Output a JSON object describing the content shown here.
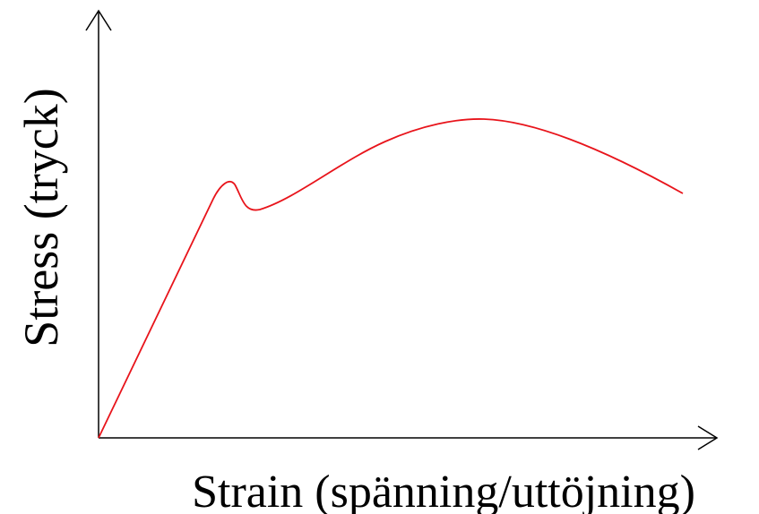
{
  "axes": {
    "y_label": "Stress (tryck)",
    "x_label": "Strain (spänning/uttöjning)"
  }
}
